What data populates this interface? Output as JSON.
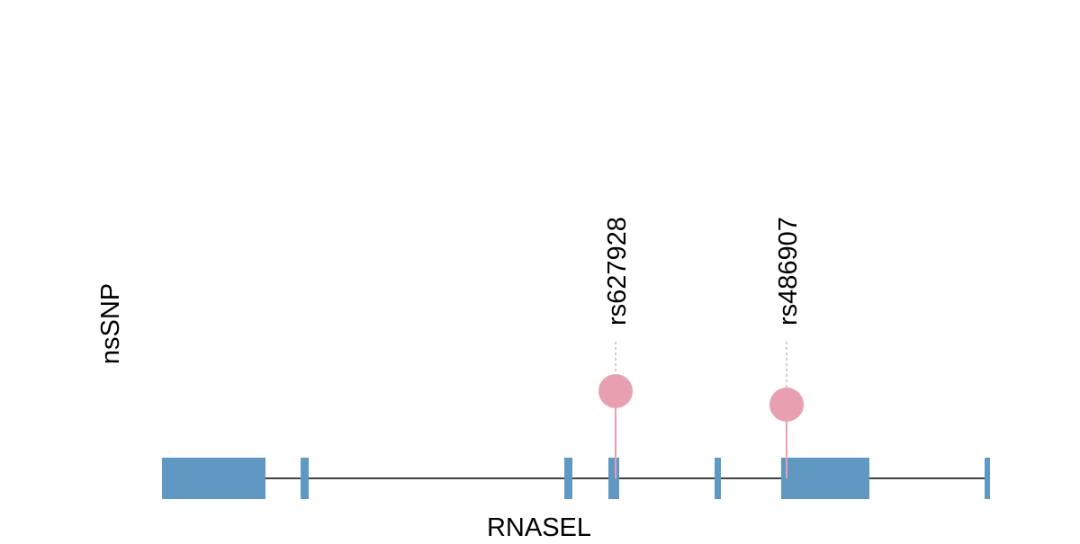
{
  "track_label": "nsSNP",
  "gene": {
    "name": "RNASEL",
    "exon_color": "#5e98c3",
    "intron_color": "#000000",
    "exons": [
      {
        "index": 1,
        "kind": "large"
      },
      {
        "index": 2,
        "kind": "small"
      },
      {
        "index": 3,
        "kind": "small"
      },
      {
        "index": 4,
        "kind": "small"
      },
      {
        "index": 5,
        "kind": "small"
      },
      {
        "index": 6,
        "kind": "large"
      },
      {
        "index": 7,
        "kind": "small"
      }
    ]
  },
  "snps": [
    {
      "id": "rs627928",
      "exon": 4,
      "color": "#e8a0b0",
      "connector_color": "#bbbbbb"
    },
    {
      "id": "rs486907",
      "exon": 6,
      "color": "#e8a0b0",
      "connector_color": "#bbbbbb"
    }
  ]
}
